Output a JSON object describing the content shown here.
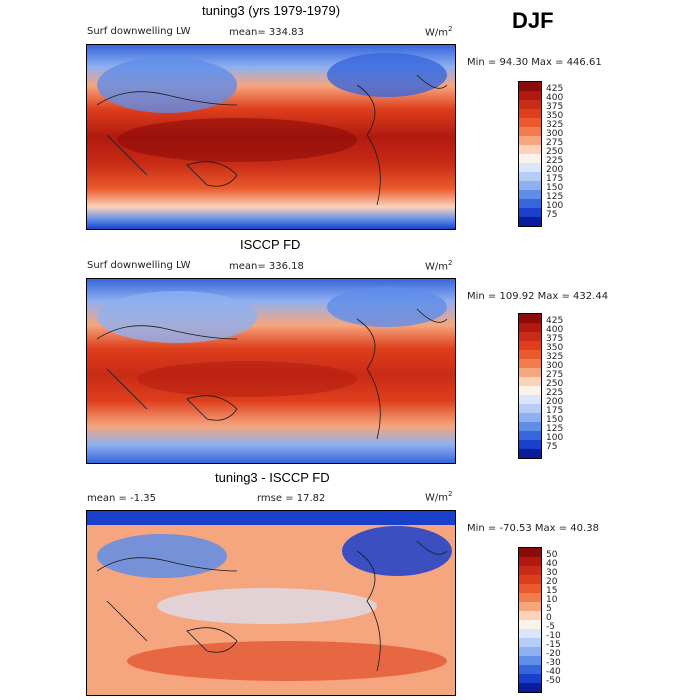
{
  "season": "DJF",
  "panels": [
    {
      "title": "tuning3 (yrs 1979-1979)",
      "field": "Surf downwelling LW",
      "stat1": "mean= 334.83",
      "stat2": "",
      "units": "W/m",
      "units_sup": "2",
      "minmax": "Min =  94.30 Max = 446.61",
      "ticks": [
        "425",
        "400",
        "375",
        "350",
        "325",
        "300",
        "275",
        "250",
        "225",
        "200",
        "175",
        "150",
        "125",
        "100",
        "75"
      ]
    },
    {
      "title": "ISCCP FD",
      "field": "Surf downwelling LW",
      "stat1": "mean= 336.18",
      "stat2": "",
      "units": "W/m",
      "units_sup": "2",
      "minmax": "Min = 109.92 Max = 432.44",
      "ticks": [
        "425",
        "400",
        "375",
        "350",
        "325",
        "300",
        "275",
        "250",
        "225",
        "200",
        "175",
        "150",
        "125",
        "100",
        "75"
      ]
    },
    {
      "title": "tuning3 - ISCCP FD",
      "field": "",
      "stat1": "mean =  -1.35",
      "stat2": "rmse =  17.82",
      "units": "W/m",
      "units_sup": "2",
      "minmax": "Min = -70.53 Max =  40.38",
      "ticks": [
        "50",
        "40",
        "30",
        "20",
        "15",
        "10",
        "5",
        "0",
        "-5",
        "-10",
        "-15",
        "-20",
        "-30",
        "-40",
        "-50"
      ]
    }
  ],
  "colors": {
    "scale": [
      "#8b0a0a",
      "#b01a10",
      "#c92c16",
      "#de3e1c",
      "#ea5a2c",
      "#f27d4c",
      "#f6a67e",
      "#fbd3bd",
      "#fbf2ea",
      "#dbe6fb",
      "#b5cdf7",
      "#8fb0f0",
      "#5f8de8",
      "#3766dc",
      "#1a3fcb",
      "#0a1c9c"
    ],
    "ocean_warm": "#c92c16",
    "land_line": "#1a1a1a"
  }
}
